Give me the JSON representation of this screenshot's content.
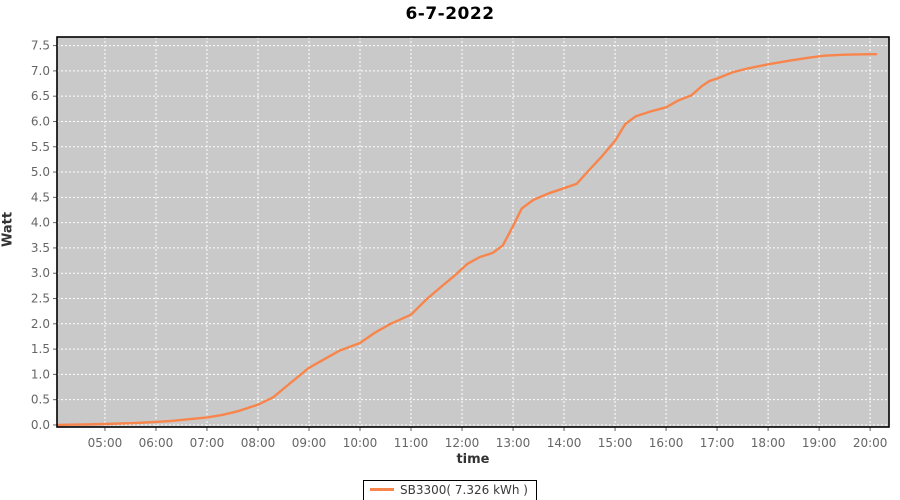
{
  "title": "6-7-2022",
  "axes": {
    "x_label": "time",
    "y_label": "Watt"
  },
  "legend": {
    "label": "SB3300( 7.326 kWh )"
  },
  "chart_data": {
    "type": "line",
    "title": "6-7-2022",
    "xlabel": "time",
    "ylabel": "Watt",
    "xlim": [
      4.06,
      20.37
    ],
    "ylim": [
      -0.04,
      7.67
    ],
    "grid": "white dashed gridlines on gray plot background",
    "legend_position": "bottom-center",
    "colors": {
      "series": "#f8854b",
      "plot_background": "#c9c9c9",
      "gridline": "#ffffff",
      "plot_border": "#000000",
      "tick_text": "#666666",
      "axis_text": "#333333",
      "title_text": "#000000"
    },
    "x_ticks": [
      {
        "t": 5,
        "label": "05:00"
      },
      {
        "t": 6,
        "label": "06:00"
      },
      {
        "t": 7,
        "label": "07:00"
      },
      {
        "t": 8,
        "label": "08:00"
      },
      {
        "t": 9,
        "label": "09:00"
      },
      {
        "t": 10,
        "label": "10:00"
      },
      {
        "t": 11,
        "label": "11:00"
      },
      {
        "t": 12,
        "label": "12:00"
      },
      {
        "t": 13,
        "label": "13:00"
      },
      {
        "t": 14,
        "label": "14:00"
      },
      {
        "t": 15,
        "label": "15:00"
      },
      {
        "t": 16,
        "label": "16:00"
      },
      {
        "t": 17,
        "label": "17:00"
      },
      {
        "t": 18,
        "label": "18:00"
      },
      {
        "t": 19,
        "label": "19:00"
      },
      {
        "t": 20,
        "label": "20:00"
      }
    ],
    "y_ticks": [
      {
        "v": 0.0,
        "label": "0.0"
      },
      {
        "v": 0.5,
        "label": "0.5"
      },
      {
        "v": 1.0,
        "label": "1.0"
      },
      {
        "v": 1.5,
        "label": "1.5"
      },
      {
        "v": 2.0,
        "label": "2.0"
      },
      {
        "v": 2.5,
        "label": "2.5"
      },
      {
        "v": 3.0,
        "label": "3.0"
      },
      {
        "v": 3.5,
        "label": "3.5"
      },
      {
        "v": 4.0,
        "label": "4.0"
      },
      {
        "v": 4.5,
        "label": "4.5"
      },
      {
        "v": 5.0,
        "label": "5.0"
      },
      {
        "v": 5.5,
        "label": "5.5"
      },
      {
        "v": 6.0,
        "label": "6.0"
      },
      {
        "v": 6.5,
        "label": "6.5"
      },
      {
        "v": 7.0,
        "label": "7.0"
      },
      {
        "v": 7.5,
        "label": "7.5"
      }
    ],
    "series": [
      {
        "name": "SB3300",
        "legend_label": "SB3300( 7.326 kWh )",
        "total_kwh_shown": 7.326,
        "color": "#f8854b",
        "points": [
          [
            4.08,
            0.0
          ],
          [
            4.3,
            0.005
          ],
          [
            4.6,
            0.01
          ],
          [
            5.0,
            0.02
          ],
          [
            5.3,
            0.03
          ],
          [
            5.6,
            0.04
          ],
          [
            6.0,
            0.06
          ],
          [
            6.3,
            0.08
          ],
          [
            6.6,
            0.11
          ],
          [
            7.0,
            0.15
          ],
          [
            7.3,
            0.2
          ],
          [
            7.6,
            0.27
          ],
          [
            8.0,
            0.4
          ],
          [
            8.3,
            0.55
          ],
          [
            8.6,
            0.8
          ],
          [
            9.0,
            1.13
          ],
          [
            9.3,
            1.3
          ],
          [
            9.6,
            1.47
          ],
          [
            10.0,
            1.62
          ],
          [
            10.3,
            1.83
          ],
          [
            10.6,
            2.0
          ],
          [
            11.0,
            2.18
          ],
          [
            11.3,
            2.48
          ],
          [
            11.6,
            2.74
          ],
          [
            11.85,
            2.95
          ],
          [
            12.1,
            3.18
          ],
          [
            12.35,
            3.32
          ],
          [
            12.6,
            3.4
          ],
          [
            12.8,
            3.55
          ],
          [
            13.0,
            3.93
          ],
          [
            13.17,
            4.28
          ],
          [
            13.4,
            4.45
          ],
          [
            13.7,
            4.58
          ],
          [
            14.0,
            4.68
          ],
          [
            14.25,
            4.77
          ],
          [
            14.5,
            5.05
          ],
          [
            14.75,
            5.32
          ],
          [
            15.0,
            5.62
          ],
          [
            15.2,
            5.95
          ],
          [
            15.4,
            6.1
          ],
          [
            15.7,
            6.2
          ],
          [
            16.0,
            6.28
          ],
          [
            16.25,
            6.42
          ],
          [
            16.5,
            6.52
          ],
          [
            16.7,
            6.7
          ],
          [
            16.85,
            6.8
          ],
          [
            17.0,
            6.85
          ],
          [
            17.3,
            6.97
          ],
          [
            17.6,
            7.05
          ],
          [
            18.0,
            7.13
          ],
          [
            18.4,
            7.2
          ],
          [
            18.8,
            7.26
          ],
          [
            19.1,
            7.3
          ],
          [
            19.5,
            7.32
          ],
          [
            20.0,
            7.33
          ],
          [
            20.12,
            7.33
          ]
        ]
      }
    ]
  }
}
